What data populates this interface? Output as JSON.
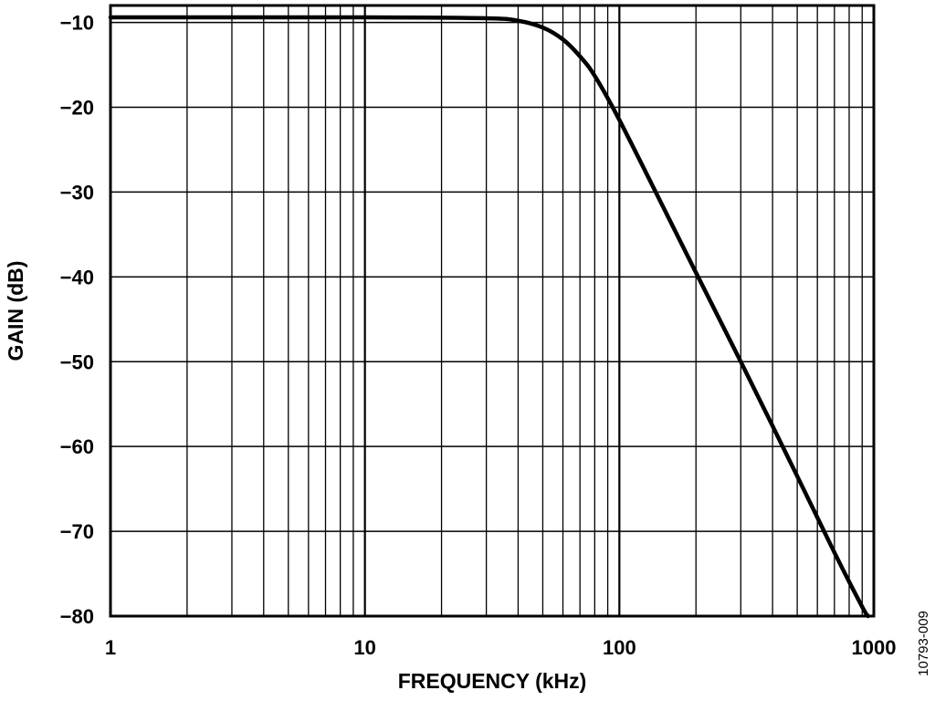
{
  "chart_data": {
    "type": "line",
    "title": "",
    "xlabel": "FREQUENCY (kHz)",
    "ylabel": "GAIN (dB)",
    "xscale": "log",
    "xlim": [
      1,
      1000
    ],
    "ylim": [
      -80,
      -8
    ],
    "grid": true,
    "x_ticks": [
      {
        "value": 1,
        "label": "1"
      },
      {
        "value": 10,
        "label": "10"
      },
      {
        "value": 100,
        "label": "100"
      },
      {
        "value": 1000,
        "label": "1000"
      }
    ],
    "y_ticks": [
      {
        "value": -10,
        "label": "−10"
      },
      {
        "value": -20,
        "label": "−20"
      },
      {
        "value": -30,
        "label": "−30"
      },
      {
        "value": -40,
        "label": "−40"
      },
      {
        "value": -50,
        "label": "−50"
      },
      {
        "value": -60,
        "label": "−60"
      },
      {
        "value": -70,
        "label": "−70"
      },
      {
        "value": -80,
        "label": "−80"
      }
    ],
    "series": [
      {
        "name": "Gain",
        "x": [
          1,
          10,
          30,
          40,
          50,
          60,
          70,
          80,
          100,
          150,
          200,
          300,
          500,
          700,
          900,
          950
        ],
        "y": [
          -9.4,
          -9.4,
          -9.5,
          -9.8,
          -10.6,
          -12.0,
          -14.0,
          -16.3,
          -21.5,
          -32.0,
          -39.5,
          -50.0,
          -63.5,
          -72.5,
          -78.9,
          -80.0
        ]
      }
    ],
    "color": "#000000",
    "figure_id": "10793-009"
  }
}
